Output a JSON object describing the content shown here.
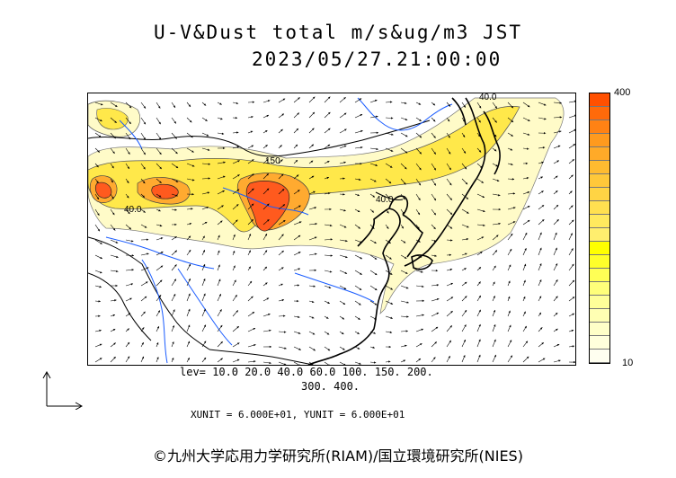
{
  "title": {
    "line1": "U-V&Dust total m/s&ug/m3 JST",
    "line2": "2023/05/27.21:00:00"
  },
  "contour_labels": [
    "40.0",
    "150",
    "40.0",
    "40.0"
  ],
  "colorbar": {
    "max_label": "400",
    "min_label": "10",
    "colors": [
      "#ff5000",
      "#ff6a0a",
      "#ff8214",
      "#ff9a1e",
      "#ffaa28",
      "#ffbb30",
      "#ffc83a",
      "#ffd444",
      "#ffe050",
      "#ffe95e",
      "#ffee6e",
      "#ffff00",
      "#ffff2a",
      "#ffff55",
      "#ffff7a",
      "#ffff99",
      "#ffffb3",
      "#ffffc8",
      "#ffffdc",
      "#fffff0"
    ]
  },
  "levels": {
    "line1": "lev= 10.0 20.0 40.0 60.0 100. 150. 200.",
    "line2": "300. 400."
  },
  "units": "XUNIT = 6.000E+01, YUNIT = 6.000E+01",
  "copyright": "©九州大学応用力学研究所(RIAM)/国立環境研究所(NIES)",
  "colors": {
    "coast": "#000000",
    "rivers": "#1a5cff",
    "dust_low": "#fffbc8",
    "dust_mid": "#ffe84a",
    "dust_high": "#ffaa30",
    "dust_peak": "#ff5a1e"
  }
}
